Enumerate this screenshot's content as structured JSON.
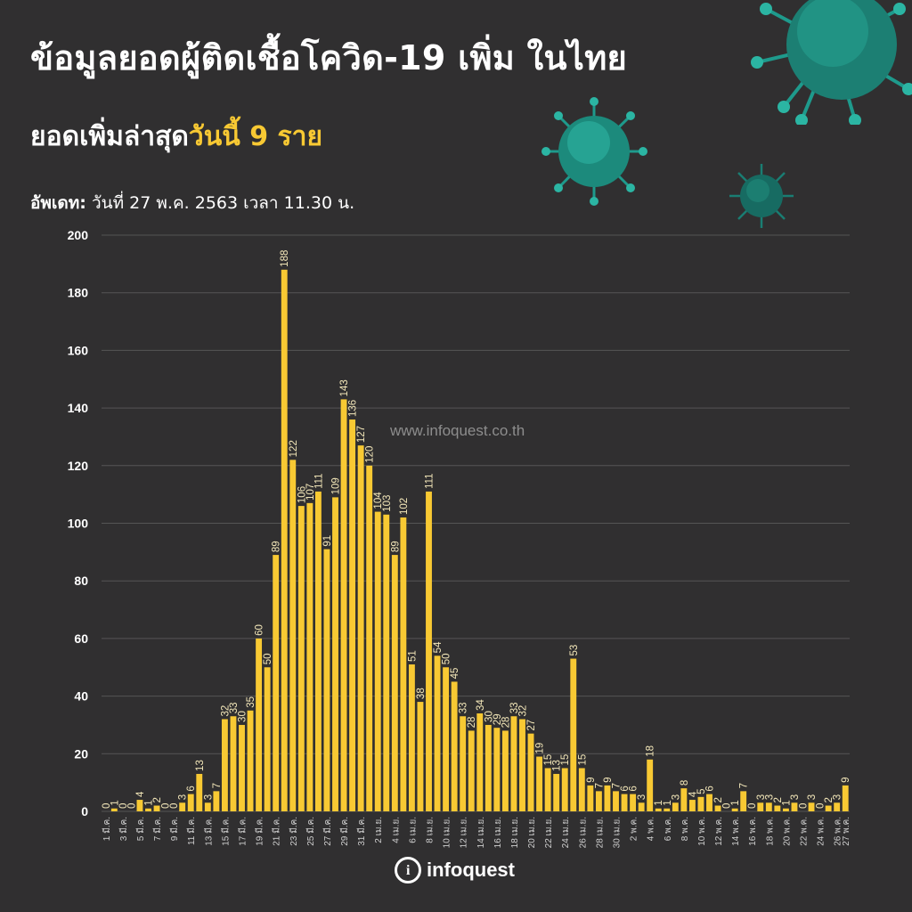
{
  "header": {
    "title": "ข้อมูลยอดผู้ติดเชื้อโควิด-19 เพิ่ม ในไทย",
    "subtitle_prefix": "ยอดเพิ่มล่าสุด",
    "subtitle_highlight": "วันนี้ 9 ราย",
    "update_label": "อัพเดท:",
    "update_text": " วันที่ 27 พ.ค. 2563 เวลา 11.30 น."
  },
  "watermark": "www.infoquest.co.th",
  "logo": {
    "text": "infoquest",
    "icon": "i"
  },
  "colors": {
    "background": "#302f30",
    "bar": "#f8c933",
    "grid": "#555555",
    "label": "#f2e6b8",
    "axis": "#cfcfcf"
  },
  "chart_data": {
    "type": "bar",
    "title": "",
    "xlabel": "",
    "ylabel": "",
    "ylim": [
      0,
      200
    ],
    "yticks": [
      0,
      20,
      40,
      60,
      80,
      100,
      120,
      140,
      160,
      180,
      200
    ],
    "grid": true,
    "categories": [
      "1 มี.ค.",
      "2 มี.ค.",
      "3 มี.ค.",
      "4 มี.ค.",
      "5 มี.ค.",
      "6 มี.ค.",
      "7 มี.ค.",
      "8 มี.ค.",
      "9 มี.ค.",
      "10 มี.ค.",
      "11 มี.ค.",
      "12 มี.ค.",
      "13 มี.ค.",
      "14 มี.ค.",
      "15 มี.ค.",
      "16 มี.ค.",
      "17 มี.ค.",
      "18 มี.ค.",
      "19 มี.ค.",
      "20 มี.ค.",
      "21 มี.ค.",
      "22 มี.ค.",
      "23 มี.ค.",
      "24 มี.ค.",
      "25 มี.ค.",
      "26 มี.ค.",
      "27 มี.ค.",
      "28 มี.ค.",
      "29 มี.ค.",
      "30 มี.ค.",
      "31 มี.ค.",
      "1 เม.ย.",
      "2 เม.ย.",
      "3 เม.ย.",
      "4 เม.ย.",
      "5 เม.ย.",
      "6 เม.ย.",
      "7 เม.ย.",
      "8 เม.ย.",
      "9 เม.ย.",
      "10 เม.ย.",
      "11 เม.ย.",
      "12 เม.ย.",
      "13 เม.ย.",
      "14 เม.ย.",
      "15 เม.ย.",
      "16 เม.ย.",
      "17 เม.ย.",
      "18 เม.ย.",
      "19 เม.ย.",
      "20 เม.ย.",
      "21 เม.ย.",
      "22 เม.ย.",
      "23 เม.ย.",
      "24 เม.ย.",
      "25 เม.ย.",
      "26 เม.ย.",
      "27 เม.ย.",
      "28 เม.ย.",
      "29 เม.ย.",
      "30 เม.ย.",
      "1 พ.ค.",
      "2 พ.ค.",
      "3 พ.ค.",
      "4 พ.ค.",
      "5 พ.ค.",
      "6 พ.ค.",
      "7 พ.ค.",
      "8 พ.ค.",
      "9 พ.ค.",
      "10 พ.ค.",
      "11 พ.ค.",
      "12 พ.ค.",
      "13 พ.ค.",
      "14 พ.ค.",
      "15 พ.ค.",
      "16 พ.ค.",
      "17 พ.ค.",
      "18 พ.ค.",
      "19 พ.ค.",
      "20 พ.ค.",
      "21 พ.ค.",
      "22 พ.ค.",
      "23 พ.ค.",
      "24 พ.ค.",
      "25 พ.ค.",
      "26 พ.ค.",
      "27 พ.ค."
    ],
    "tick_labels": [
      "1 มี.ค.",
      "3 มี.ค.",
      "5 มี.ค.",
      "7 มี.ค.",
      "9 มี.ค.",
      "11 มี.ค.",
      "13 มี.ค.",
      "15 มี.ค.",
      "17 มี.ค.",
      "19 มี.ค.",
      "21 มี.ค.",
      "23 มี.ค.",
      "25 มี.ค.",
      "27 มี.ค.",
      "29 มี.ค.",
      "31 มี.ค.",
      "2 เม.ย.",
      "4 เม.ย.",
      "6 เม.ย.",
      "8 เม.ย.",
      "10 เม.ย.",
      "12 เม.ย.",
      "14 เม.ย.",
      "16 เม.ย.",
      "18 เม.ย.",
      "20 เม.ย.",
      "22 เม.ย.",
      "24 เม.ย.",
      "26 เม.ย.",
      "28 เม.ย.",
      "30 เม.ย.",
      "2 พ.ค.",
      "4 พ.ค.",
      "6 พ.ค.",
      "8 พ.ค.",
      "10 พ.ค.",
      "12 พ.ค.",
      "14 พ.ค.",
      "16 พ.ค.",
      "18 พ.ค.",
      "20 พ.ค.",
      "22 พ.ค.",
      "24 พ.ค.",
      "26 พ.ค.",
      "27 พ.ค."
    ],
    "values": [
      0,
      1,
      0,
      0,
      4,
      1,
      2,
      0,
      0,
      3,
      6,
      13,
      3,
      7,
      32,
      33,
      30,
      35,
      60,
      50,
      89,
      188,
      122,
      106,
      107,
      111,
      91,
      109,
      143,
      136,
      127,
      120,
      104,
      103,
      89,
      102,
      51,
      38,
      111,
      54,
      50,
      45,
      33,
      28,
      34,
      30,
      29,
      28,
      33,
      32,
      27,
      19,
      15,
      13,
      15,
      53,
      15,
      9,
      7,
      9,
      7,
      6,
      6,
      3,
      18,
      1,
      1,
      3,
      8,
      4,
      5,
      6,
      2,
      0,
      1,
      7,
      0,
      3,
      3,
      2,
      1,
      3,
      0,
      3,
      0,
      2,
      3,
      9
    ]
  }
}
